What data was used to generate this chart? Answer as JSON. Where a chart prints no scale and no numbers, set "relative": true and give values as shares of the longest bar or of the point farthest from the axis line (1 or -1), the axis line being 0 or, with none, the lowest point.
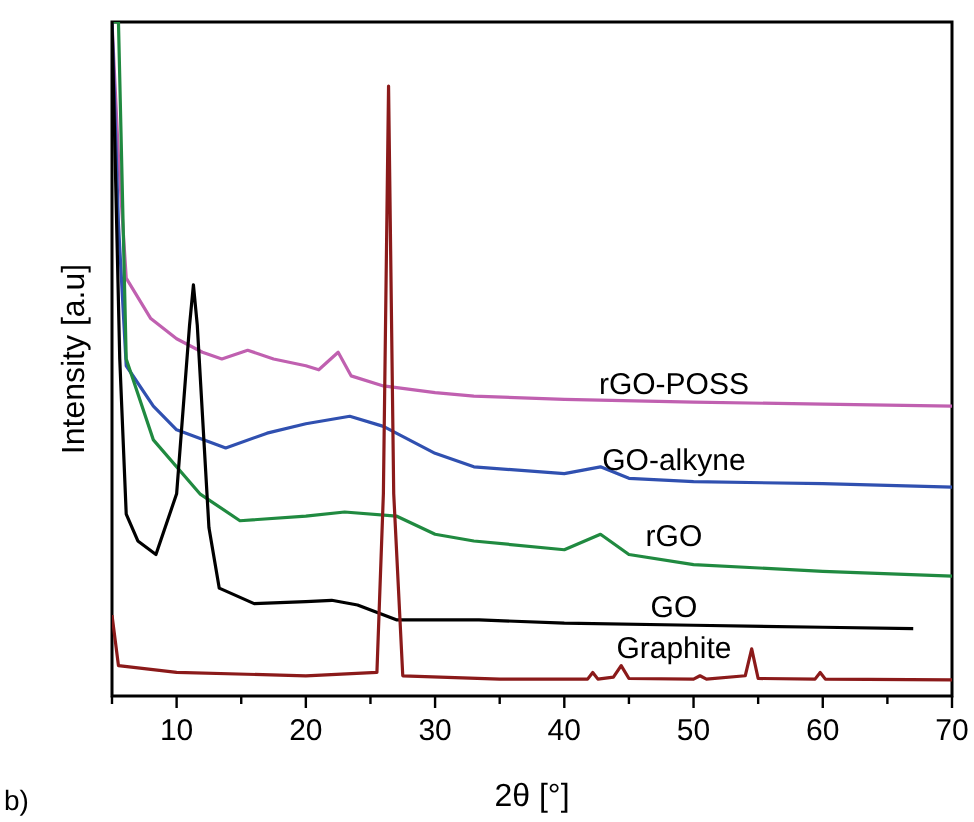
{
  "chart_data": {
    "type": "line",
    "relative": true,
    "xlabel": "2θ [°]",
    "ylabel": "Intensity [a.u]",
    "annotations": [
      "b)"
    ],
    "xlim": [
      5,
      70
    ],
    "xticks": [
      {
        "value": 5,
        "label": null
      },
      10,
      {
        "value": 15,
        "label": null
      },
      20,
      {
        "value": 25,
        "label": null
      },
      30,
      {
        "value": 35,
        "label": null
      },
      40,
      {
        "value": 45,
        "label": null
      },
      50,
      {
        "value": 55,
        "label": null
      },
      60,
      {
        "value": 65,
        "label": null
      },
      70
    ],
    "legend": false,
    "grid": false,
    "marker": "none",
    "line_style": "solid",
    "series": [
      {
        "name": "rGO-POSS",
        "color": "#c060b0",
        "x": [
          5,
          5.5,
          6.1,
          8,
          10,
          12,
          13.5,
          15.5,
          17.5,
          20,
          21,
          22.5,
          23.5,
          26,
          30,
          33,
          40,
          50,
          60,
          70
        ],
        "values": [
          1,
          0.8,
          0.62,
          0.56,
          0.53,
          0.51,
          0.5,
          0.513,
          0.5,
          0.49,
          0.484,
          0.51,
          0.475,
          0.46,
          0.45,
          0.445,
          0.44,
          0.436,
          0.433,
          0.43
        ]
      },
      {
        "name": "GO-alkyne",
        "color": "#3050b0",
        "x": [
          5,
          5.5,
          6.1,
          8.2,
          10,
          13.8,
          17,
          20,
          23.4,
          26,
          30,
          33,
          40,
          42.8,
          45,
          50,
          60,
          70
        ],
        "values": [
          1,
          0.7,
          0.49,
          0.43,
          0.395,
          0.368,
          0.39,
          0.404,
          0.415,
          0.4,
          0.36,
          0.34,
          0.33,
          0.34,
          0.323,
          0.318,
          0.315,
          0.31
        ]
      },
      {
        "name": "rGO",
        "color": "#208a40",
        "x": [
          5,
          5.5,
          6.1,
          8.2,
          11.8,
          14.9,
          20,
          23,
          27,
          30,
          33,
          40,
          42.8,
          45,
          50,
          60,
          70
        ],
        "values": [
          1,
          1,
          0.5,
          0.38,
          0.3,
          0.26,
          0.267,
          0.273,
          0.267,
          0.24,
          0.23,
          0.217,
          0.24,
          0.21,
          0.195,
          0.185,
          0.178
        ]
      },
      {
        "name": "GO",
        "color": "#000000",
        "x": [
          5,
          5.6,
          6.1,
          7,
          8.4,
          10,
          11,
          11.3,
          11.6,
          12.5,
          13.3,
          16,
          20,
          22,
          24,
          27,
          33.4,
          40,
          50,
          60,
          67
        ],
        "values": [
          1,
          0.5,
          0.27,
          0.23,
          0.21,
          0.3,
          0.55,
          0.61,
          0.55,
          0.25,
          0.16,
          0.137,
          0.14,
          0.142,
          0.135,
          0.113,
          0.113,
          0.108,
          0.105,
          0.102,
          0.1
        ]
      },
      {
        "name": "Graphite",
        "color": "#8b1a1a",
        "x": [
          5,
          5.5,
          10,
          20,
          25.5,
          26,
          26.4,
          26.8,
          27.5,
          35,
          41.8,
          42.2,
          42.6,
          43.8,
          44.4,
          45,
          50,
          50.5,
          51,
          54,
          54.5,
          55,
          59.4,
          59.8,
          60.2,
          70
        ],
        "values": [
          0.12,
          0.045,
          0.035,
          0.03,
          0.035,
          0.3,
          0.905,
          0.3,
          0.03,
          0.025,
          0.025,
          0.035,
          0.025,
          0.028,
          0.045,
          0.026,
          0.025,
          0.03,
          0.025,
          0.03,
          0.07,
          0.026,
          0.025,
          0.035,
          0.025,
          0.024
        ]
      }
    ]
  }
}
